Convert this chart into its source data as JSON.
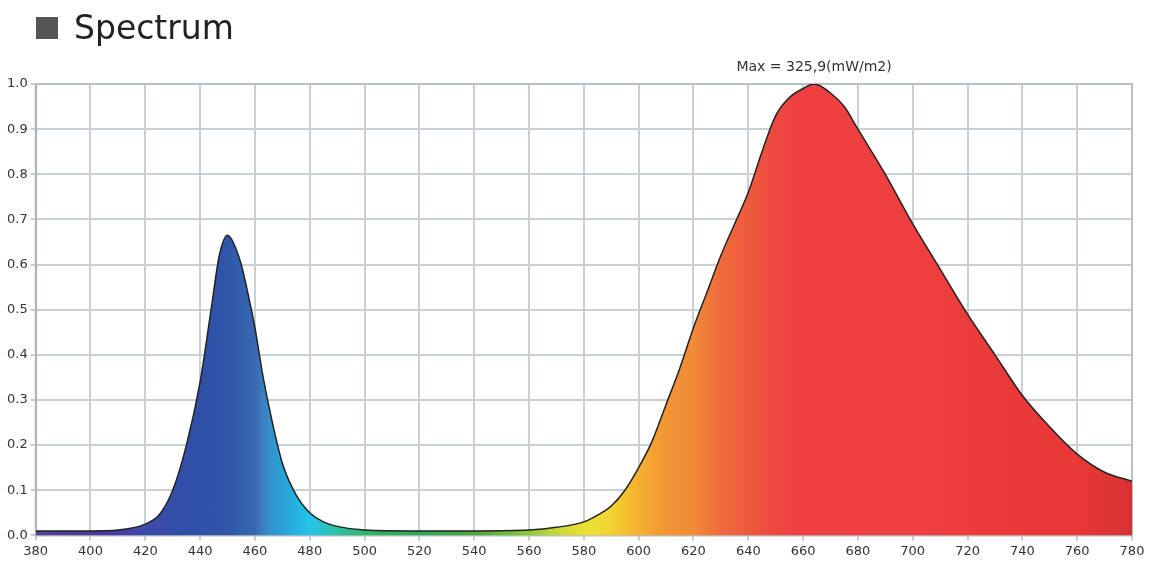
{
  "chart_data": {
    "type": "area",
    "title": "Spectrum",
    "x": [
      380,
      400,
      410,
      420,
      425,
      430,
      435,
      440,
      444,
      447,
      450,
      452,
      455,
      458,
      460,
      463,
      466,
      470,
      475,
      480,
      485,
      490,
      500,
      520,
      540,
      560,
      570,
      580,
      585,
      590,
      595,
      600,
      605,
      610,
      615,
      620,
      625,
      630,
      635,
      640,
      645,
      650,
      655,
      660,
      664,
      670,
      675,
      680,
      690,
      700,
      710,
      720,
      730,
      740,
      750,
      760,
      770,
      780
    ],
    "series": [
      {
        "color": "#222222",
        "values": [
          0.01,
          0.01,
          0.012,
          0.025,
          0.045,
          0.1,
          0.2,
          0.34,
          0.5,
          0.62,
          0.665,
          0.65,
          0.6,
          0.52,
          0.46,
          0.35,
          0.26,
          0.16,
          0.09,
          0.05,
          0.03,
          0.02,
          0.012,
          0.01,
          0.01,
          0.012,
          0.018,
          0.03,
          0.045,
          0.065,
          0.1,
          0.15,
          0.21,
          0.29,
          0.37,
          0.46,
          0.54,
          0.62,
          0.69,
          0.76,
          0.85,
          0.93,
          0.97,
          0.99,
          1.0,
          0.98,
          0.95,
          0.9,
          0.8,
          0.69,
          0.59,
          0.49,
          0.4,
          0.31,
          0.24,
          0.18,
          0.14,
          0.12
        ],
        "colors": [
          "#5a3d9a",
          "#4b3a9e",
          "#463ca2",
          "#3d4aa8",
          "#3a4ca8",
          "#344ea8",
          "#304fa8",
          "#2f4fa6",
          "#2f52a7",
          "#2f54a8",
          "#2f55a8",
          "#305aab",
          "#3260ae",
          "#3664b0",
          "#3a66b0",
          "#3a80c0",
          "#3292cc",
          "#2aa0d8",
          "#27b2e0",
          "#25c4e8",
          "#2ac2c8",
          "#30c0a8",
          "#2fb56a",
          "#2faa55",
          "#4aa83a",
          "#8cc83a",
          "#c8d83a",
          "#e8e035",
          "#eedb32",
          "#f3d22f",
          "#f4c12f",
          "#f5b030",
          "#f3a232",
          "#f29634",
          "#f19036",
          "#f08a38",
          "#ef7a3a",
          "#ef6a3b",
          "#ee623c",
          "#ee5a3c",
          "#ee503e",
          "#ee4840",
          "#ee4240",
          "#ee4040",
          "#ee4040",
          "#ee4040",
          "#ee4040",
          "#ee4040",
          "#ee4040",
          "#ee4040",
          "#ed3e3e",
          "#ec3c3c",
          "#eb3a3a",
          "#ea3939",
          "#e93838",
          "#e83838",
          "#df3535",
          "#d63232"
        ]
      }
    ],
    "xlim": [
      380,
      780
    ],
    "xticks": [
      380,
      400,
      420,
      440,
      460,
      480,
      500,
      520,
      540,
      560,
      580,
      600,
      620,
      640,
      660,
      680,
      700,
      720,
      740,
      760,
      780
    ],
    "ylim": [
      0,
      1
    ],
    "yticks": [
      {
        "value": 0,
        "label": "0.0"
      },
      0.1,
      0.2,
      0.3,
      0.4,
      0.5,
      0.6,
      0.7,
      0.8,
      0.9,
      {
        "value": 1,
        "label": "1.0"
      }
    ],
    "grid": true,
    "annotations": [
      {
        "text": "Max = 325,9(mW/m2)",
        "x": 664,
        "y": 1.0
      }
    ]
  }
}
